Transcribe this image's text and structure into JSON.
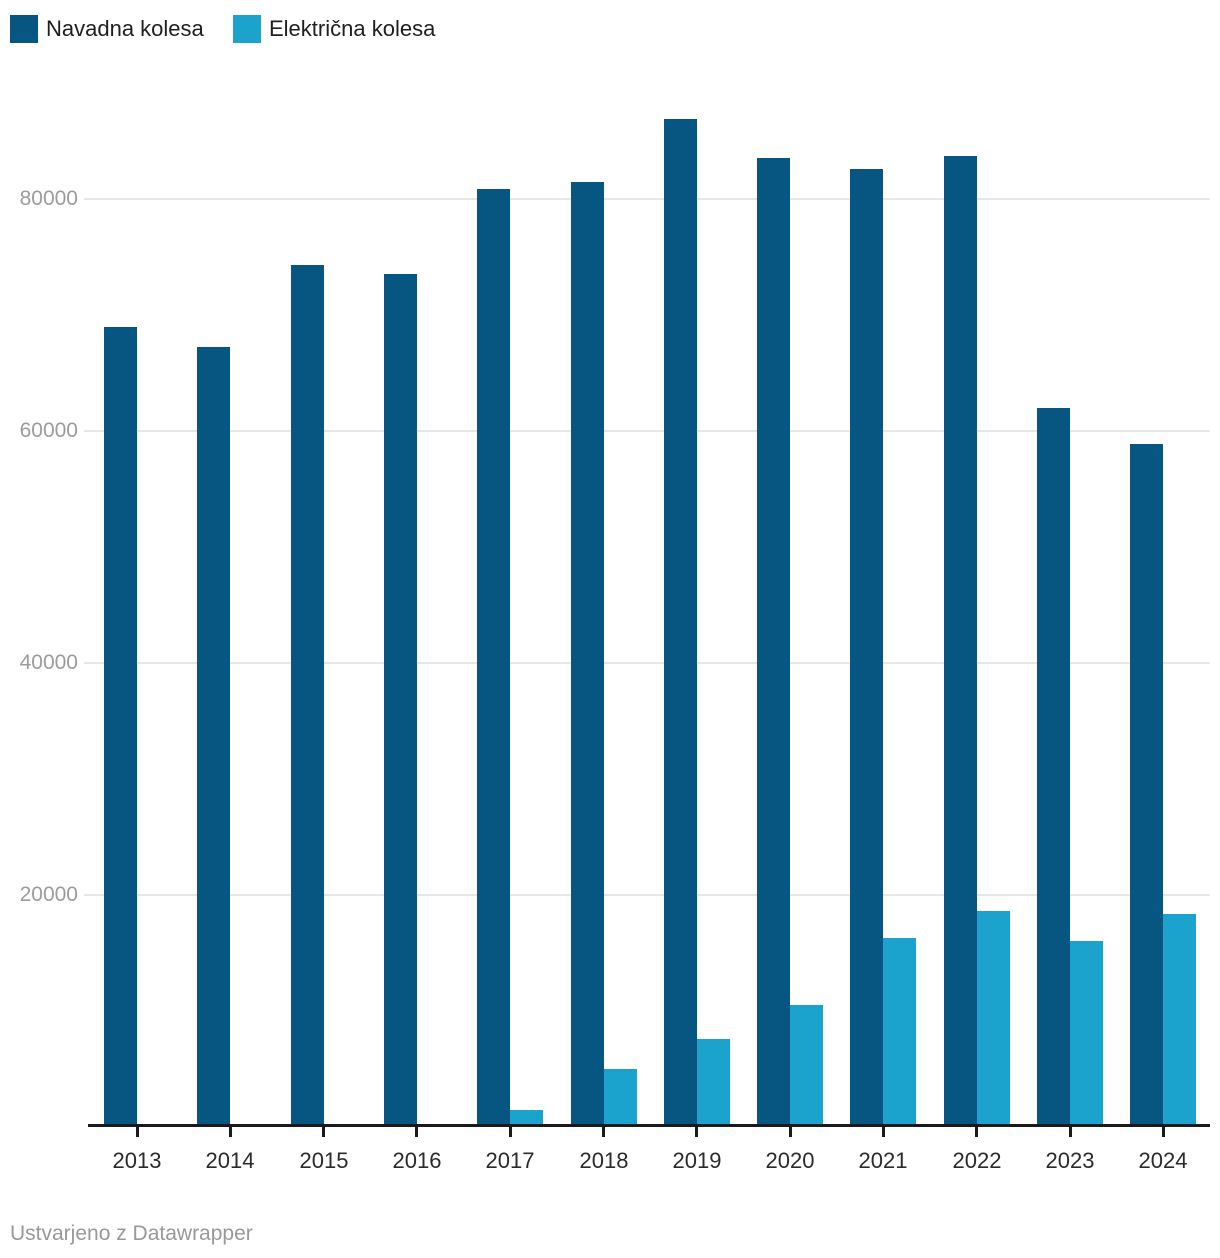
{
  "legend": {
    "items": [
      {
        "label": "Navadna kolesa",
        "color": "#075581"
      },
      {
        "label": "Električna kolesa",
        "color": "#1ba3cd"
      }
    ]
  },
  "footer": {
    "credit": "Ustvarjeno z Datawrapper"
  },
  "colors": {
    "series_dark": "#075581",
    "series_light": "#1ba3cd",
    "gridline": "#e7e7e7",
    "axis": "#1a1a1a",
    "y_tick_label": "#9c9c9c",
    "x_tick_label": "#2b2b2b",
    "credit_text": "#999999"
  },
  "chart_data": {
    "type": "bar",
    "title": "",
    "xlabel": "",
    "ylabel": "",
    "categories": [
      "2013",
      "2014",
      "2015",
      "2016",
      "2017",
      "2018",
      "2019",
      "2020",
      "2021",
      "2022",
      "2023",
      "2024"
    ],
    "series": [
      {
        "name": "Navadna kolesa",
        "color": "#075581",
        "values": [
          69000,
          67200,
          74300,
          73500,
          80900,
          81500,
          86900,
          83500,
          82600,
          83700,
          62000,
          58900
        ]
      },
      {
        "name": "Električna kolesa",
        "color": "#1ba3cd",
        "values": [
          0,
          0,
          0,
          0,
          1500,
          5000,
          7600,
          10500,
          16300,
          18600,
          16000,
          18400
        ]
      }
    ],
    "yticks": [
      20000,
      40000,
      60000,
      80000
    ],
    "ytick_labels": [
      "20000",
      "40000",
      "60000",
      "80000"
    ],
    "ylim": [
      0,
      90000
    ],
    "grid": "horizontal-only",
    "legend_position": "top-left",
    "bar_layout": "grouped"
  }
}
